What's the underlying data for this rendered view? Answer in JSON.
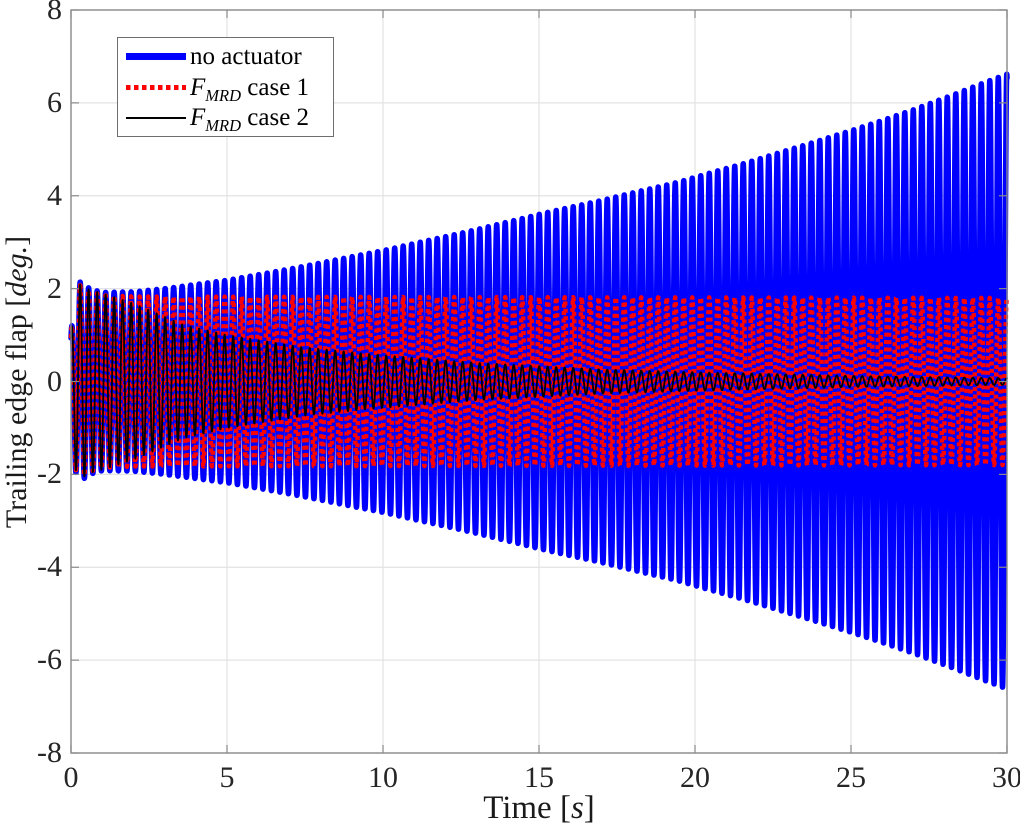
{
  "chart_data": {
    "type": "line",
    "title": "",
    "xlabel": "Time [s]",
    "ylabel": "Trailing edge flap [deg.]",
    "xlabel_parts": {
      "pre": "Time [",
      "italic": "s",
      "post": "]"
    },
    "ylabel_parts": {
      "pre": "Trailing edge flap [",
      "italic": "deg.",
      "post": "]"
    },
    "xlim": [
      0,
      30
    ],
    "ylim": [
      -8,
      8
    ],
    "xticks": [
      0,
      5,
      10,
      15,
      20,
      25,
      30
    ],
    "xtick_labels": [
      "0",
      "5",
      "10",
      "15",
      "20",
      "25",
      "30"
    ],
    "yticks": [
      -8,
      -6,
      -4,
      -2,
      0,
      2,
      4,
      6,
      8
    ],
    "ytick_labels": [
      "-8",
      "-6",
      "-4",
      "-2",
      "0",
      "2",
      "4",
      "6",
      "8"
    ],
    "grid": true,
    "legend_position": "top-left",
    "colors": {
      "axis": "#8a8a8a",
      "grid": "#e3e3e3",
      "tick_label": "#262626",
      "background": "#ffffff",
      "legend_border": "#6e6e6e",
      "series_blue": "#0000ff",
      "series_red": "#ff0000",
      "series_black": "#000000"
    },
    "series": [
      {
        "id": "no-actuator",
        "name": "no actuator",
        "color": "#0000ff",
        "style": "solid-thick",
        "line_width": 5.5,
        "frequency_hz": 3.67,
        "phase_rad": 1.1,
        "envelope_deg": [
          [
            0,
            1.05
          ],
          [
            0.15,
            1.95
          ],
          [
            0.3,
            2.15
          ],
          [
            0.6,
            2.0
          ],
          [
            1,
            1.92
          ],
          [
            2,
            1.93
          ],
          [
            3,
            2.0
          ],
          [
            5,
            2.18
          ],
          [
            7,
            2.42
          ],
          [
            10,
            2.82
          ],
          [
            13,
            3.27
          ],
          [
            15,
            3.6
          ],
          [
            17,
            3.9
          ],
          [
            19.5,
            4.3
          ],
          [
            22,
            4.78
          ],
          [
            25,
            5.4
          ],
          [
            27,
            5.85
          ],
          [
            30,
            6.62
          ]
        ]
      },
      {
        "id": "fmrd-case-1",
        "name": "F_MRD case 1",
        "color": "#ff0000",
        "style": "dotted",
        "line_width": 4.5,
        "frequency_hz": 3.67,
        "phase_rad": 1.1,
        "envelope_deg": [
          [
            0,
            1.05
          ],
          [
            0.15,
            1.9
          ],
          [
            0.3,
            2.08
          ],
          [
            0.6,
            1.95
          ],
          [
            1,
            1.86
          ],
          [
            2,
            1.83
          ],
          [
            30,
            1.8
          ]
        ]
      },
      {
        "id": "fmrd-case-2",
        "name": "F_MRD case 2",
        "color": "#000000",
        "style": "solid-thin",
        "line_width": 1.8,
        "frequency_hz": 3.67,
        "phase_rad": 1.1,
        "envelope_deg": [
          [
            0,
            1.05
          ],
          [
            0.15,
            1.9
          ],
          [
            0.3,
            2.1
          ],
          [
            0.6,
            1.97
          ],
          [
            1,
            1.9
          ],
          [
            2,
            1.68
          ],
          [
            3.6,
            1.22
          ],
          [
            5,
            1.0
          ],
          [
            7.4,
            0.74
          ],
          [
            9.4,
            0.6
          ],
          [
            13,
            0.4
          ],
          [
            17,
            0.26
          ],
          [
            20,
            0.2
          ],
          [
            25,
            0.12
          ],
          [
            30,
            0.07
          ]
        ]
      }
    ]
  },
  "legend": {
    "items": [
      {
        "f": "",
        "sub": "",
        "rest": "no actuator"
      },
      {
        "f": "F",
        "sub": "MRD",
        "rest": " case 1"
      },
      {
        "f": "F",
        "sub": "MRD",
        "rest": " case 2"
      }
    ]
  }
}
